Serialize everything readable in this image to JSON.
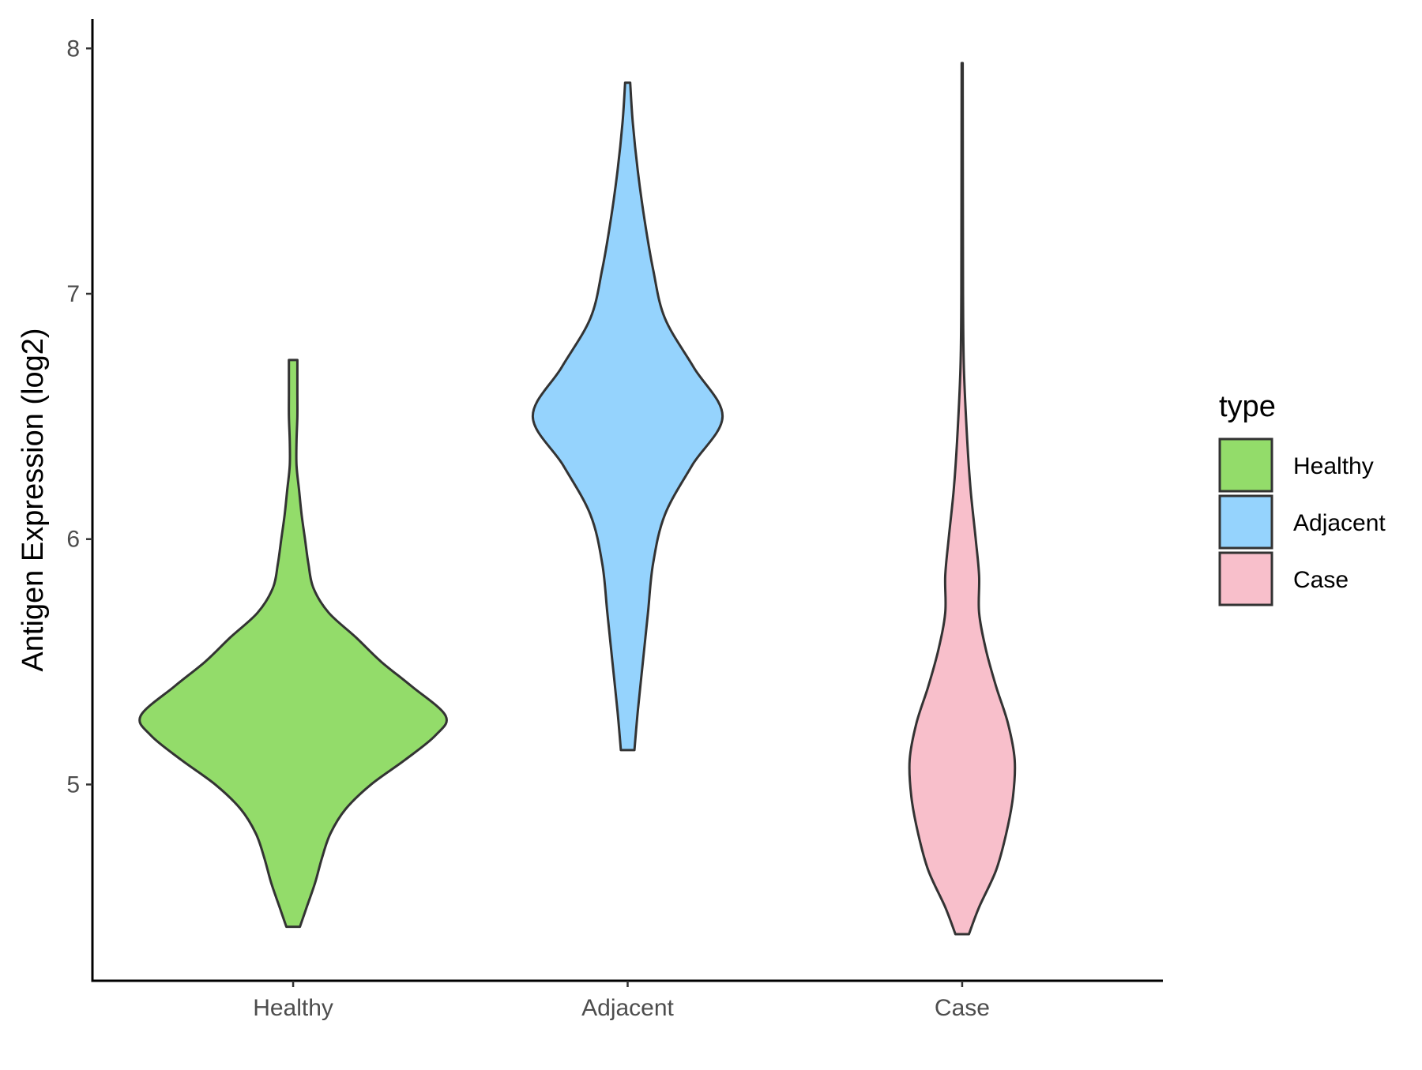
{
  "chart_data": {
    "type": "violin",
    "ylabel": "Antigen Expression (log2)",
    "xlabel": "",
    "categories": [
      "Healthy",
      "Adjacent",
      "Case"
    ],
    "ylim": [
      4.2,
      8.12
    ],
    "yticks": [
      5,
      6,
      7,
      8
    ],
    "legend": {
      "title": "type",
      "position": "right",
      "entries": [
        "Healthy",
        "Adjacent",
        "Case"
      ]
    },
    "grid": false,
    "series": [
      {
        "name": "Healthy",
        "color": "#93dc6a",
        "min": 4.42,
        "max": 6.73,
        "density": [
          [
            4.42,
            0.04
          ],
          [
            4.5,
            0.08
          ],
          [
            4.6,
            0.13
          ],
          [
            4.7,
            0.17
          ],
          [
            4.8,
            0.22
          ],
          [
            4.9,
            0.31
          ],
          [
            5.0,
            0.46
          ],
          [
            5.1,
            0.66
          ],
          [
            5.2,
            0.84
          ],
          [
            5.28,
            0.9
          ],
          [
            5.4,
            0.7
          ],
          [
            5.5,
            0.52
          ],
          [
            5.6,
            0.37
          ],
          [
            5.7,
            0.21
          ],
          [
            5.8,
            0.12
          ],
          [
            5.9,
            0.09
          ],
          [
            6.0,
            0.07
          ],
          [
            6.1,
            0.05
          ],
          [
            6.2,
            0.035
          ],
          [
            6.3,
            0.02
          ],
          [
            6.4,
            0.02
          ],
          [
            6.5,
            0.025
          ],
          [
            6.6,
            0.025
          ],
          [
            6.73,
            0.025
          ]
        ]
      },
      {
        "name": "Adjacent",
        "color": "#95d3fd",
        "min": 5.14,
        "max": 7.86,
        "density": [
          [
            5.14,
            0.04
          ],
          [
            5.3,
            0.06
          ],
          [
            5.5,
            0.09
          ],
          [
            5.7,
            0.12
          ],
          [
            5.9,
            0.15
          ],
          [
            6.1,
            0.22
          ],
          [
            6.3,
            0.38
          ],
          [
            6.5,
            0.56
          ],
          [
            6.7,
            0.39
          ],
          [
            6.9,
            0.22
          ],
          [
            7.1,
            0.15
          ],
          [
            7.3,
            0.1
          ],
          [
            7.5,
            0.06
          ],
          [
            7.7,
            0.03
          ],
          [
            7.86,
            0.015
          ]
        ]
      },
      {
        "name": "Case",
        "color": "#f8bfcb",
        "min": 4.39,
        "max": 7.94,
        "density": [
          [
            4.39,
            0.04
          ],
          [
            4.5,
            0.1
          ],
          [
            4.65,
            0.2
          ],
          [
            4.8,
            0.26
          ],
          [
            4.95,
            0.3
          ],
          [
            5.1,
            0.31
          ],
          [
            5.25,
            0.27
          ],
          [
            5.4,
            0.2
          ],
          [
            5.55,
            0.14
          ],
          [
            5.7,
            0.1
          ],
          [
            5.85,
            0.1
          ],
          [
            6.0,
            0.08
          ],
          [
            6.2,
            0.05
          ],
          [
            6.4,
            0.03
          ],
          [
            6.7,
            0.01
          ],
          [
            7.0,
            0.005
          ],
          [
            7.4,
            0.004
          ],
          [
            7.94,
            0.003
          ]
        ]
      }
    ]
  }
}
